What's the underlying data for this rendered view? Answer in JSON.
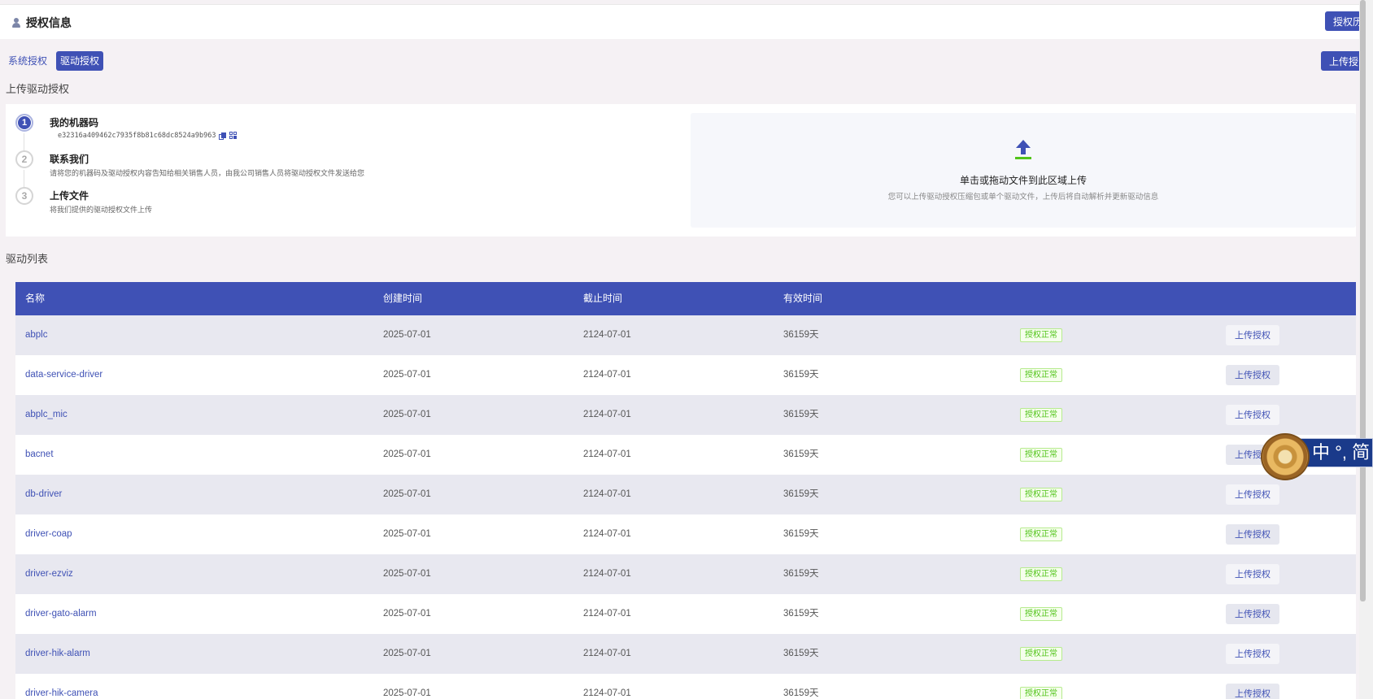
{
  "header": {
    "title": "授权信息",
    "icon": "user-icon",
    "auth_button": "授权历"
  },
  "tabs": [
    {
      "label": "系统授权",
      "active": false
    },
    {
      "label": "驱动授权",
      "active": true
    }
  ],
  "upload_top_button": "上传授",
  "upload_section": {
    "title": "上传驱动授权",
    "steps": [
      {
        "number": "1",
        "title": "我的机器码",
        "code": "e32316a409462c7935f8b81c68dc8524a9b963",
        "active": true
      },
      {
        "number": "2",
        "title": "联系我们",
        "desc": "请将您的机器码及驱动授权内容告知给相关销售人员，由我公司销售人员将驱动授权文件发送给您",
        "active": false
      },
      {
        "number": "3",
        "title": "上传文件",
        "desc": "将我们提供的驱动授权文件上传",
        "active": false
      }
    ],
    "dropzone": {
      "icon": "upload-arrow-icon",
      "title": "单击或拖动文件到此区域上传",
      "desc": "您可以上传驱动授权压缩包或单个驱动文件，上传后将自动解析并更新驱动信息"
    }
  },
  "driver_list": {
    "title": "驱动列表",
    "columns": [
      "名称",
      "创建时间",
      "截止时间",
      "有效时间"
    ],
    "rows": [
      {
        "name": "abplc",
        "created": "2025-07-01",
        "expires": "2124-07-01",
        "valid": "36159天",
        "status": "授权正常",
        "action": "上传授权"
      },
      {
        "name": "data-service-driver",
        "created": "2025-07-01",
        "expires": "2124-07-01",
        "valid": "36159天",
        "status": "授权正常",
        "action": "上传授权"
      },
      {
        "name": "abplc_mic",
        "created": "2025-07-01",
        "expires": "2124-07-01",
        "valid": "36159天",
        "status": "授权正常",
        "action": "上传授权"
      },
      {
        "name": "bacnet",
        "created": "2025-07-01",
        "expires": "2124-07-01",
        "valid": "36159天",
        "status": "授权正常",
        "action": "上传授权"
      },
      {
        "name": "db-driver",
        "created": "2025-07-01",
        "expires": "2124-07-01",
        "valid": "36159天",
        "status": "授权正常",
        "action": "上传授权"
      },
      {
        "name": "driver-coap",
        "created": "2025-07-01",
        "expires": "2124-07-01",
        "valid": "36159天",
        "status": "授权正常",
        "action": "上传授权"
      },
      {
        "name": "driver-ezviz",
        "created": "2025-07-01",
        "expires": "2124-07-01",
        "valid": "36159天",
        "status": "授权正常",
        "action": "上传授权"
      },
      {
        "name": "driver-gato-alarm",
        "created": "2025-07-01",
        "expires": "2124-07-01",
        "valid": "36159天",
        "status": "授权正常",
        "action": "上传授权"
      },
      {
        "name": "driver-hik-alarm",
        "created": "2025-07-01",
        "expires": "2124-07-01",
        "valid": "36159天",
        "status": "授权正常",
        "action": "上传授权"
      },
      {
        "name": "driver-hik-camera",
        "created": "2025-07-01",
        "expires": "2124-07-01",
        "valid": "36159天",
        "status": "授权正常",
        "action": "上传授权"
      }
    ]
  },
  "ime_toolbar": {
    "text": "中 °, 简"
  },
  "colors": {
    "primary": "#3f51b5",
    "success": "#52c41a",
    "page_bg": "#f5f1f4"
  }
}
